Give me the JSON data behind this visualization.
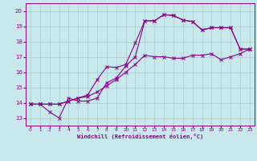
{
  "xlabel": "Windchill (Refroidissement éolien,°C)",
  "xlim": [
    -0.5,
    23.5
  ],
  "ylim": [
    12.5,
    20.5
  ],
  "xticks": [
    0,
    1,
    2,
    3,
    4,
    5,
    6,
    7,
    8,
    9,
    10,
    11,
    12,
    13,
    14,
    15,
    16,
    17,
    18,
    19,
    20,
    21,
    22,
    23
  ],
  "yticks": [
    13,
    14,
    15,
    16,
    17,
    18,
    19,
    20
  ],
  "background_color": "#c8e8ec",
  "grid_color": "#a8cccc",
  "line_color": "#880088",
  "line1_x": [
    0,
    1,
    2,
    3,
    4,
    5,
    6,
    7,
    8,
    9,
    10,
    11,
    12,
    13,
    14,
    15,
    16,
    17,
    18,
    19,
    20,
    21,
    22,
    23
  ],
  "line1_y": [
    13.9,
    13.9,
    13.9,
    13.9,
    14.1,
    14.3,
    14.4,
    14.7,
    15.1,
    15.5,
    16.0,
    16.5,
    17.1,
    17.0,
    17.0,
    16.9,
    16.9,
    17.1,
    17.1,
    17.2,
    16.8,
    17.0,
    17.2,
    17.5
  ],
  "line2_x": [
    0,
    1,
    2,
    3,
    4,
    5,
    6,
    7,
    8,
    9,
    10,
    11,
    12,
    13,
    14,
    15,
    16,
    17,
    18,
    19,
    20,
    21,
    22,
    23
  ],
  "line2_y": [
    13.9,
    13.9,
    13.4,
    13.0,
    14.3,
    14.1,
    14.1,
    14.3,
    15.3,
    15.6,
    16.4,
    17.0,
    19.35,
    19.35,
    19.75,
    19.7,
    19.4,
    19.3,
    18.75,
    18.9,
    18.9,
    18.9,
    17.5,
    17.5
  ],
  "line3_x": [
    0,
    1,
    2,
    3,
    4,
    5,
    6,
    7,
    8,
    9,
    10,
    11,
    12,
    13,
    14,
    15,
    16,
    17,
    18,
    19,
    20,
    21,
    22,
    23
  ],
  "line3_y": [
    13.9,
    13.9,
    13.9,
    13.9,
    14.1,
    14.3,
    14.5,
    15.5,
    16.35,
    16.3,
    16.5,
    17.9,
    19.35,
    19.35,
    19.75,
    19.7,
    19.4,
    19.3,
    18.75,
    18.9,
    18.9,
    18.9,
    17.5,
    17.5
  ]
}
